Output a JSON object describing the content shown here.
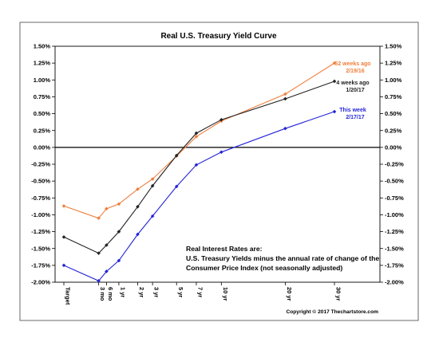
{
  "chart_data": {
    "type": "line",
    "title": "Real U.S. Treasury Yield Curve",
    "x_categories": [
      "Target",
      "3 mo",
      "6 mo",
      "1 yr",
      "2 yr",
      "3 yr",
      "5 yr",
      "7 yr",
      "10 yr",
      "20 yr",
      "30 yr"
    ],
    "x_values_years": [
      -0.25,
      0.25,
      0.5,
      1,
      2,
      3,
      5,
      7,
      10,
      20,
      30
    ],
    "ylim": [
      -2.0,
      1.5
    ],
    "y_ticks": [
      "1.50%",
      "1.25%",
      "1.00%",
      "0.75%",
      "0.50%",
      "0.25%",
      "0.00%",
      "-0.25%",
      "-0.50%",
      "-0.75%",
      "-1.00%",
      "-1.25%",
      "-1.50%",
      "-1.75%",
      "-2.00%"
    ],
    "y_tick_values": [
      1.5,
      1.25,
      1.0,
      0.75,
      0.5,
      0.25,
      0.0,
      -0.25,
      -0.5,
      -0.75,
      -1.0,
      -1.25,
      -1.5,
      -1.75,
      -2.0
    ],
    "y_axis_both_sides": true,
    "zero_line": true,
    "grid": false,
    "series": [
      {
        "name": "52 weeks ago",
        "date": "2/19/16",
        "color": "#f07f3c",
        "values": [
          -0.87,
          -1.05,
          -0.91,
          -0.84,
          -0.62,
          -0.47,
          -0.13,
          0.16,
          0.39,
          0.79,
          1.25
        ]
      },
      {
        "name": "4 weeks ago",
        "date": "1/20/17",
        "color": "#222222",
        "values": [
          -1.33,
          -1.57,
          -1.45,
          -1.25,
          -0.88,
          -0.57,
          -0.12,
          0.21,
          0.41,
          0.72,
          0.98
        ]
      },
      {
        "name": "This week",
        "date": "2/17/17",
        "color": "#2424d8",
        "values": [
          -1.75,
          -1.98,
          -1.84,
          -1.68,
          -1.29,
          -1.02,
          -0.58,
          -0.26,
          -0.07,
          0.28,
          0.53
        ]
      }
    ],
    "annotation_lines": [
      "Real Interest Rates are:",
      "U.S. Treasury Yields minus the annual rate of change of the",
      "Consumer Price Index (not seasonally adjusted)"
    ],
    "copyright": "Copyright © 2017 Thechartstore.com"
  }
}
